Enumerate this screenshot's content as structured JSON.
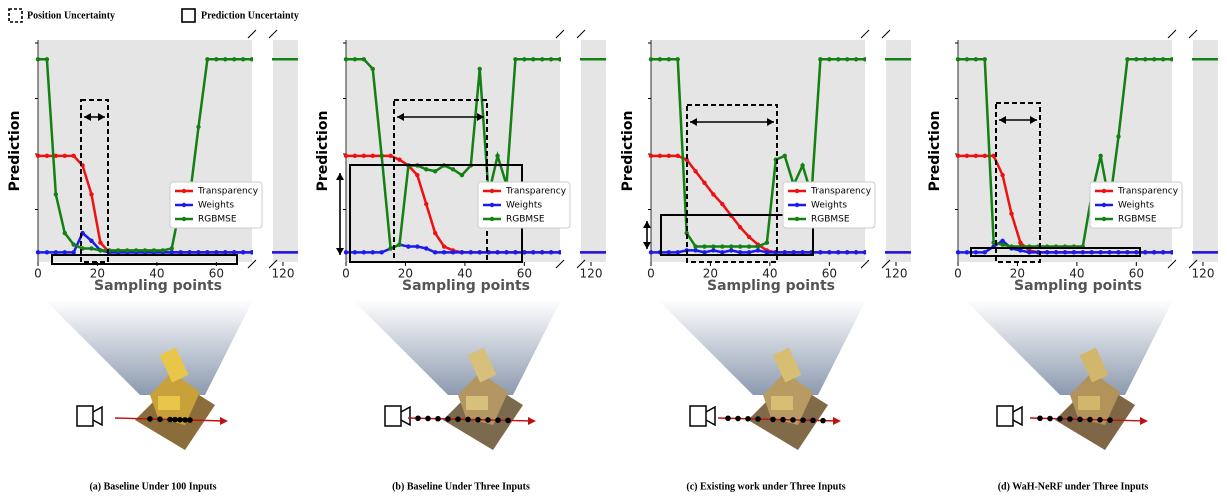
{
  "legend": {
    "items": [
      "Position Uncertainty",
      "Prediction Uncertainty"
    ]
  },
  "chart_data": [
    {
      "type": "line",
      "caption": "(a) Baseline Under 100 Inputs",
      "xlabel": "Sampling points",
      "ylabel": "Prediction",
      "x": [
        0,
        3,
        6,
        9,
        12,
        15,
        18,
        21,
        24,
        27,
        30,
        33,
        36,
        39,
        42,
        45,
        48,
        51,
        54,
        57,
        60,
        63,
        66,
        69,
        72,
        126
      ],
      "xlim": [
        0,
        126
      ],
      "xbreak": [
        72,
        116
      ],
      "ylim": [
        -0.05,
        1.1
      ],
      "xticks": [
        0,
        20,
        40,
        60,
        120
      ],
      "series": [
        {
          "name": "Transparency",
          "color": "#ee1111",
          "values": [
            0.5,
            0.5,
            0.5,
            0.5,
            0.5,
            0.45,
            0.3,
            0.05,
            0,
            0,
            0,
            0,
            0,
            0,
            0,
            0,
            0,
            0,
            0,
            0,
            0,
            0,
            0,
            0,
            0,
            0
          ]
        },
        {
          "name": "Weights",
          "color": "#1a1aee",
          "values": [
            0,
            0,
            0,
            0,
            0,
            0.1,
            0.06,
            0.01,
            0,
            0,
            0,
            0,
            0,
            0,
            0,
            0,
            0,
            0,
            0,
            0,
            0,
            0,
            0,
            0,
            0,
            0
          ]
        },
        {
          "name": "RGBMSE",
          "color": "#138013",
          "values": [
            1,
            1,
            0.3,
            0.1,
            0.04,
            0.02,
            0.02,
            0.01,
            0.01,
            0.01,
            0.01,
            0.01,
            0.01,
            0.01,
            0.01,
            0.02,
            0.25,
            0.28,
            0.65,
            1,
            1,
            1,
            1,
            1,
            1,
            1
          ]
        }
      ]
    },
    {
      "type": "line",
      "caption": "(b) Baseline Under Three Inputs",
      "xlabel": "Sampling points",
      "ylabel": "Prediction",
      "x": [
        0,
        3,
        6,
        9,
        12,
        15,
        18,
        21,
        24,
        27,
        30,
        33,
        36,
        39,
        42,
        45,
        48,
        51,
        54,
        57,
        60,
        63,
        66,
        69,
        72,
        126
      ],
      "xlim": [
        0,
        126
      ],
      "xbreak": [
        72,
        116
      ],
      "ylim": [
        -0.05,
        1.1
      ],
      "xticks": [
        0,
        20,
        40,
        60,
        120
      ],
      "series": [
        {
          "name": "Transparency",
          "color": "#ee1111",
          "values": [
            0.5,
            0.5,
            0.5,
            0.5,
            0.5,
            0.5,
            0.48,
            0.45,
            0.4,
            0.25,
            0.1,
            0.03,
            0.01,
            0,
            0,
            0,
            0,
            0,
            0,
            0,
            0,
            0,
            0,
            0,
            0,
            0
          ]
        },
        {
          "name": "Weights",
          "color": "#1a1aee",
          "values": [
            0,
            0,
            0,
            0,
            0,
            0.02,
            0.04,
            0.03,
            0.03,
            0.02,
            0,
            0,
            0,
            0,
            0,
            0,
            0,
            0,
            0,
            0,
            0,
            0,
            0,
            0,
            0,
            0
          ]
        },
        {
          "name": "RGBMSE",
          "color": "#138013",
          "values": [
            1,
            1,
            1,
            0.95,
            0.5,
            0.02,
            0.04,
            0.45,
            0.45,
            0.43,
            0.42,
            0.45,
            0.43,
            0.4,
            0.45,
            0.95,
            0.3,
            0.5,
            0.35,
            1,
            1,
            1,
            1,
            1,
            1,
            1
          ]
        }
      ]
    },
    {
      "type": "line",
      "caption": "(c) Existing work under Three Inputs",
      "xlabel": "Sampling points",
      "ylabel": "Prediction",
      "x": [
        0,
        3,
        6,
        9,
        12,
        15,
        18,
        21,
        24,
        27,
        30,
        33,
        36,
        39,
        42,
        45,
        48,
        51,
        54,
        57,
        60,
        63,
        66,
        69,
        72,
        126
      ],
      "xlim": [
        0,
        126
      ],
      "xbreak": [
        72,
        116
      ],
      "ylim": [
        -0.05,
        1.1
      ],
      "xticks": [
        0,
        20,
        40,
        60,
        120
      ],
      "series": [
        {
          "name": "Transparency",
          "color": "#ee1111",
          "values": [
            0.5,
            0.5,
            0.5,
            0.5,
            0.48,
            0.42,
            0.36,
            0.3,
            0.25,
            0.19,
            0.13,
            0.08,
            0.04,
            0.01,
            0,
            0,
            0,
            0,
            0,
            0,
            0,
            0,
            0,
            0,
            0,
            0
          ]
        },
        {
          "name": "Weights",
          "color": "#1a1aee",
          "values": [
            0,
            0,
            0,
            0,
            0.01,
            0.01,
            0,
            0.01,
            0,
            0.01,
            0,
            0,
            0.01,
            0,
            0,
            0,
            0,
            0,
            0,
            0,
            0,
            0,
            0,
            0,
            0,
            0
          ]
        },
        {
          "name": "RGBMSE",
          "color": "#138013",
          "values": [
            1,
            1,
            1,
            1,
            0.1,
            0.03,
            0.03,
            0.03,
            0.03,
            0.03,
            0.03,
            0.03,
            0.03,
            0.05,
            0.48,
            0.5,
            0.35,
            0.45,
            0.3,
            1,
            1,
            1,
            1,
            1,
            1,
            1
          ]
        }
      ]
    },
    {
      "type": "line",
      "caption": "(d) WaH-NeRF under Three Inputs",
      "xlabel": "Sampling points",
      "ylabel": "Prediction",
      "x": [
        0,
        3,
        6,
        9,
        12,
        15,
        18,
        21,
        24,
        27,
        30,
        33,
        36,
        39,
        42,
        45,
        48,
        51,
        54,
        57,
        60,
        63,
        66,
        69,
        72,
        126
      ],
      "xlim": [
        0,
        126
      ],
      "xbreak": [
        72,
        116
      ],
      "ylim": [
        -0.05,
        1.1
      ],
      "xticks": [
        0,
        20,
        40,
        60,
        120
      ],
      "series": [
        {
          "name": "Transparency",
          "color": "#ee1111",
          "values": [
            0.5,
            0.5,
            0.5,
            0.5,
            0.5,
            0.4,
            0.2,
            0.05,
            0.01,
            0,
            0,
            0,
            0,
            0,
            0,
            0,
            0,
            0,
            0,
            0,
            0,
            0,
            0,
            0,
            0,
            0
          ]
        },
        {
          "name": "Weights",
          "color": "#1a1aee",
          "values": [
            0,
            0,
            0,
            0,
            0.03,
            0.06,
            0.02,
            0.01,
            0,
            0,
            0,
            0,
            0,
            0,
            0,
            0,
            0,
            0,
            0,
            0,
            0,
            0,
            0,
            0,
            0,
            0
          ]
        },
        {
          "name": "RGBMSE",
          "color": "#138013",
          "values": [
            1,
            1,
            1,
            1,
            0.05,
            0.04,
            0.03,
            0.03,
            0.03,
            0.03,
            0.03,
            0.03,
            0.03,
            0.03,
            0.03,
            0.3,
            0.5,
            0.25,
            0.6,
            1,
            1,
            1,
            1,
            1,
            1,
            1
          ]
        }
      ]
    }
  ]
}
